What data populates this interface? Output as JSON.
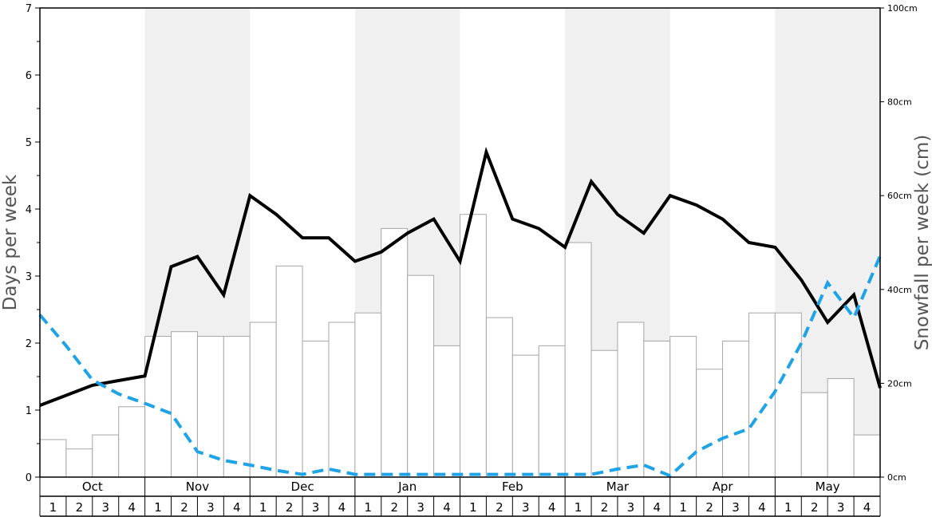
{
  "chart_data": {
    "type": "bar+line",
    "y_left_label": "Days per week",
    "y_right_label": "Snowfall per week (cm)",
    "y_left_range": [
      0,
      7
    ],
    "y_left_ticks": [
      "0",
      "1",
      "2",
      "3",
      "4",
      "5",
      "6",
      "7"
    ],
    "y_right_range": [
      0,
      100
    ],
    "y_right_ticks": [
      "0cm",
      "20cm",
      "40cm",
      "60cm",
      "80cm",
      "100cm"
    ],
    "months": [
      "Oct",
      "Nov",
      "Dec",
      "Jan",
      "Feb",
      "Mar",
      "Apr",
      "May"
    ],
    "week_labels": [
      "1",
      "2",
      "3",
      "4"
    ],
    "snowfall_cm_bars": [
      8,
      6,
      9,
      15,
      30,
      31,
      30,
      30,
      33,
      45,
      29,
      33,
      35,
      53,
      43,
      28,
      56,
      34,
      26,
      28,
      50,
      27,
      33,
      29,
      30,
      23,
      29,
      35,
      35,
      18,
      21,
      9
    ],
    "snow_days_solid": [
      1.07,
      1.22,
      1.37,
      1.44,
      1.51,
      3.14,
      3.29,
      2.72,
      4.2,
      3.92,
      3.57,
      3.57,
      3.22,
      3.36,
      3.64,
      3.85,
      3.22,
      4.85,
      3.85,
      3.71,
      3.43,
      4.41,
      3.92,
      3.64,
      4.2,
      4.06,
      3.85,
      3.5,
      3.43,
      2.94,
      2.31,
      2.72,
      1.33
    ],
    "dashed_blue": [
      2.42,
      1.96,
      1.45,
      1.24,
      1.1,
      0.95,
      0.38,
      0.25,
      0.18,
      0.1,
      0.04,
      0.12,
      0.04,
      0.04,
      0.04,
      0.04,
      0.04,
      0.04,
      0.04,
      0.04,
      0.04,
      0.04,
      0.12,
      0.18,
      0.02,
      0.38,
      0.58,
      0.72,
      1.28,
      2.0,
      2.9,
      2.38,
      3.3
    ]
  }
}
